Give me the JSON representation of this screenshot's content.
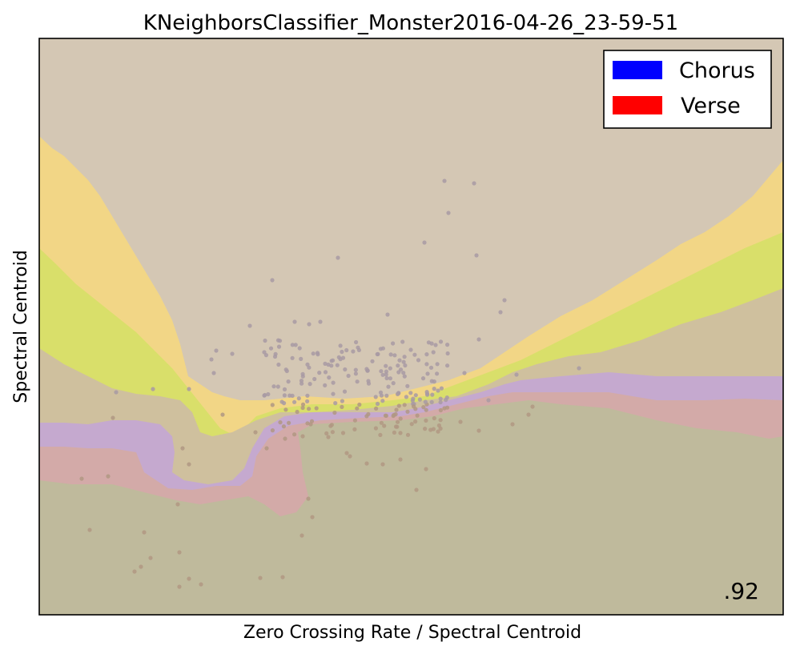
{
  "chart_data": {
    "type": "scatter",
    "title": "KNeighborsClassifier_Monster2016-04-26_23-59-51",
    "xlabel": "Zero Crossing Rate / Spectral Centroid",
    "ylabel": "Spectral Centroid",
    "legend": {
      "placement": "top-right",
      "entries": [
        {
          "label": "Chorus",
          "color": "#0000ff"
        },
        {
          "label": "Verse",
          "color": "#ff0000"
        }
      ]
    },
    "score_text": ".92",
    "ticks_visible": false,
    "grid": false,
    "region_colors": [
      "#d4c7b4",
      "#f2d686",
      "#d9df6a",
      "#cfc09e",
      "#c5a9cf",
      "#d3aaa8",
      "#bfba9c"
    ],
    "point_colors": {
      "upper": "#a89aa3",
      "lower": "#b09882"
    }
  }
}
